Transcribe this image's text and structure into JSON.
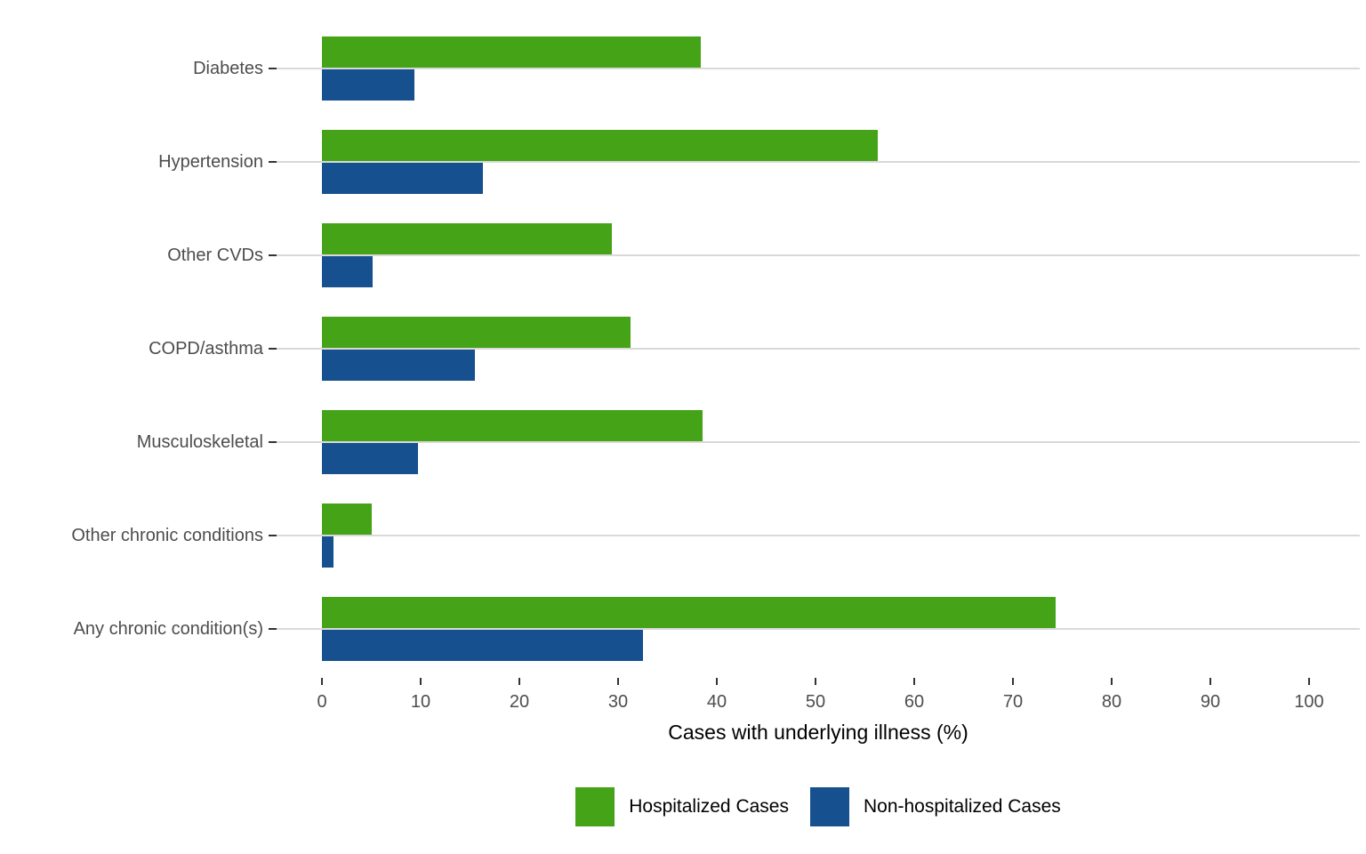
{
  "chart_data": {
    "type": "bar",
    "orientation": "horizontal",
    "title": "",
    "xlabel": "Cases with underlying illness (%)",
    "ylabel": "",
    "xlim": [
      0,
      100
    ],
    "xticks": [
      0,
      10,
      20,
      30,
      40,
      50,
      60,
      70,
      80,
      90,
      100
    ],
    "grid": "horizontal category gridlines only",
    "legend_position": "bottom",
    "categories": [
      "Diabetes",
      "Hypertension",
      "Other CVDs",
      "COPD/asthma",
      "Musculoskeletal",
      "Other chronic conditions",
      "Any chronic condition(s)"
    ],
    "series": [
      {
        "name": "Hospitalized Cases",
        "color": "#45a317",
        "values": [
          38.4,
          56.3,
          29.4,
          31.3,
          38.6,
          5.0,
          74.3
        ]
      },
      {
        "name": "Non-hospitalized Cases",
        "color": "#17508f",
        "values": [
          9.4,
          16.3,
          5.1,
          15.5,
          9.7,
          1.2,
          32.5
        ]
      }
    ],
    "colors": {
      "gridline": "#d9d9d9",
      "tick_mark": "#333333",
      "tick_text": "#4d4d4d",
      "axis_title_text": "#000000",
      "legend_text": "#000000",
      "background": "#ffffff"
    }
  }
}
